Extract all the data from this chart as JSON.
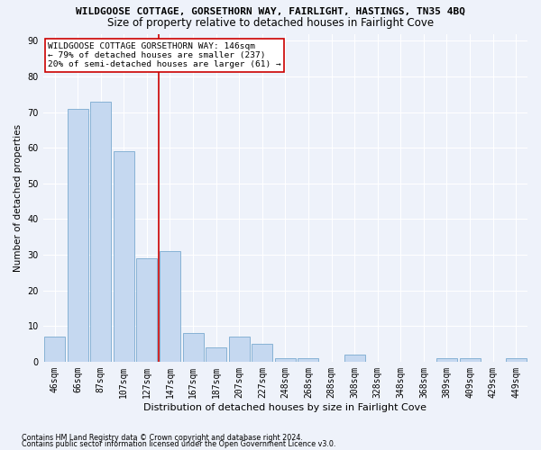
{
  "title": "WILDGOOSE COTTAGE, GORSETHORN WAY, FAIRLIGHT, HASTINGS, TN35 4BQ",
  "subtitle": "Size of property relative to detached houses in Fairlight Cove",
  "xlabel": "Distribution of detached houses by size in Fairlight Cove",
  "ylabel": "Number of detached properties",
  "categories": [
    "46sqm",
    "66sqm",
    "87sqm",
    "107sqm",
    "127sqm",
    "147sqm",
    "167sqm",
    "187sqm",
    "207sqm",
    "227sqm",
    "248sqm",
    "268sqm",
    "288sqm",
    "308sqm",
    "328sqm",
    "348sqm",
    "368sqm",
    "389sqm",
    "409sqm",
    "429sqm",
    "449sqm"
  ],
  "values": [
    7,
    71,
    73,
    59,
    29,
    31,
    8,
    4,
    7,
    5,
    1,
    1,
    0,
    2,
    0,
    0,
    0,
    1,
    1,
    0,
    1
  ],
  "bar_color": "#c5d8f0",
  "bar_edge_color": "#7aaad0",
  "highlight_color": "#cc0000",
  "annotation_text": "WILDGOOSE COTTAGE GORSETHORN WAY: 146sqm\n← 79% of detached houses are smaller (237)\n20% of semi-detached houses are larger (61) →",
  "annotation_box_color": "#ffffff",
  "annotation_border_color": "#cc0000",
  "ylim": [
    0,
    92
  ],
  "yticks": [
    0,
    10,
    20,
    30,
    40,
    50,
    60,
    70,
    80,
    90
  ],
  "footnote1": "Contains HM Land Registry data © Crown copyright and database right 2024.",
  "footnote2": "Contains public sector information licensed under the Open Government Licence v3.0.",
  "background_color": "#eef2fa",
  "grid_color": "#ffffff",
  "title_fontsize": 8,
  "subtitle_fontsize": 8.5,
  "xlabel_fontsize": 8,
  "ylabel_fontsize": 7.5,
  "annotation_fontsize": 6.8,
  "tick_fontsize": 7,
  "footnote_fontsize": 5.8
}
